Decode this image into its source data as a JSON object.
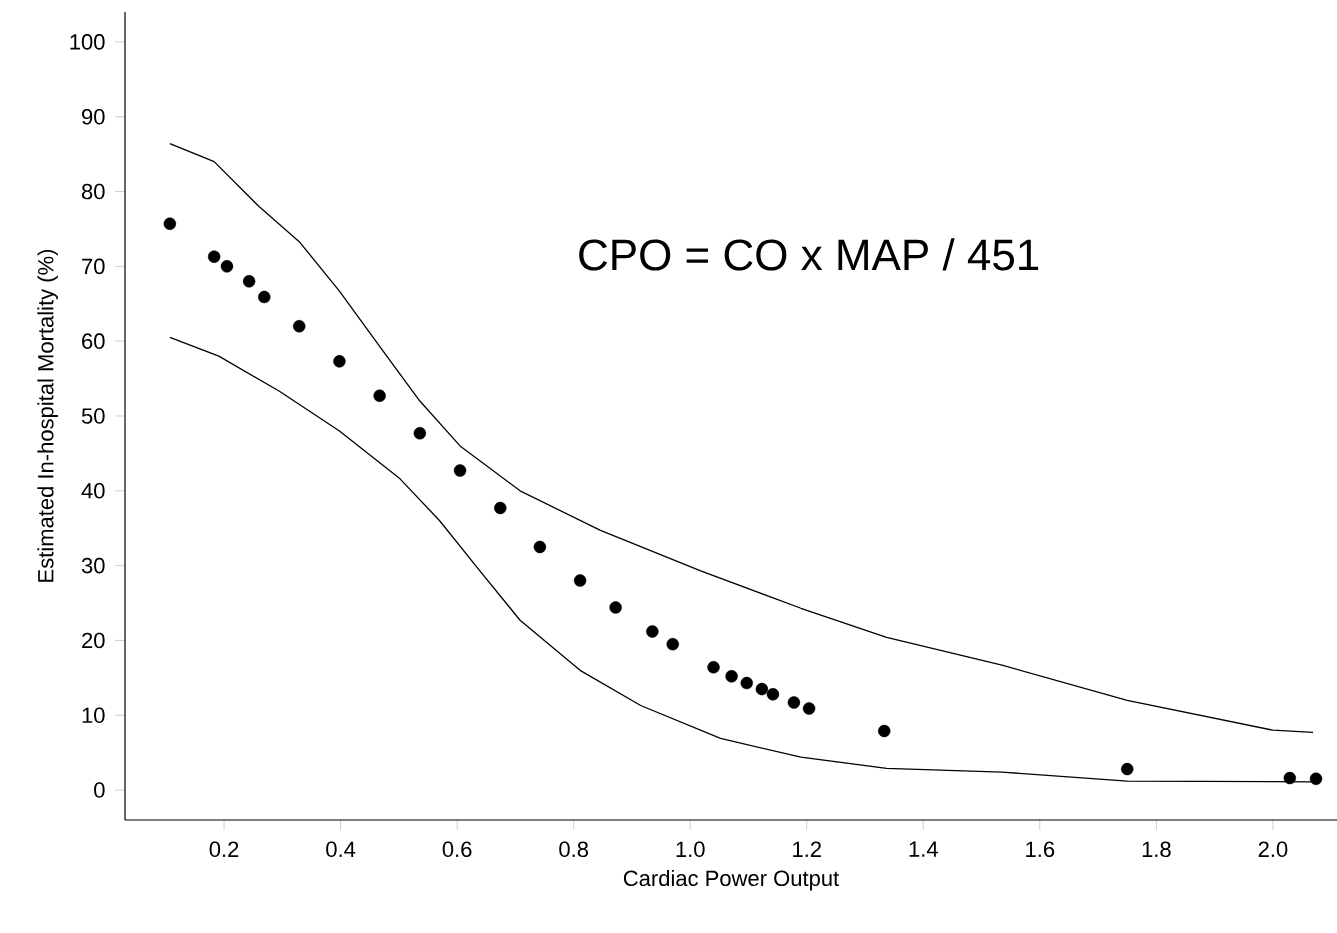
{
  "chart_data": {
    "type": "scatter",
    "xlabel": "Cardiac Power Output",
    "ylabel": "Estimated In-hospital Mortality (%)",
    "xlim": [
      0.03,
      2.11
    ],
    "ylim": [
      -4,
      104
    ],
    "xticks": [
      {
        "value": 0.2,
        "label": "0.2"
      },
      {
        "value": 0.4,
        "label": "0.4"
      },
      {
        "value": 0.6,
        "label": "0.6"
      },
      {
        "value": 0.8,
        "label": "0.8"
      },
      {
        "value": 1.0,
        "label": "1.0"
      },
      {
        "value": 1.2,
        "label": "1.2"
      },
      {
        "value": 1.4,
        "label": "1.4"
      },
      {
        "value": 1.6,
        "label": "1.6"
      },
      {
        "value": 1.8,
        "label": "1.8"
      },
      {
        "value": 2.0,
        "label": "2.0"
      }
    ],
    "yticks": [
      0,
      10,
      20,
      30,
      40,
      50,
      60,
      70,
      80,
      90,
      100
    ],
    "annotations": [
      "CPO = CO x MAP / 451"
    ],
    "series": [
      {
        "marker": "circle",
        "color": "#000000",
        "x": [
          0.107,
          0.183,
          0.205,
          0.243,
          0.269,
          0.329,
          0.398,
          0.467,
          0.536,
          0.605,
          0.674,
          0.742,
          0.811,
          0.872,
          0.935,
          0.97,
          1.04,
          1.071,
          1.097,
          1.123,
          1.142,
          1.178,
          1.204,
          1.333,
          1.75,
          2.029,
          2.074
        ],
        "values": [
          75.7,
          71.3,
          70,
          68,
          65.9,
          62,
          57.3,
          52.7,
          47.7,
          42.7,
          37.7,
          32.5,
          28,
          24.4,
          21.2,
          19.5,
          16.4,
          15.2,
          14.3,
          13.5,
          12.8,
          11.7,
          10.9,
          7.9,
          2.8,
          1.6,
          1.5
        ]
      },
      {
        "type": "line",
        "marker": "none",
        "line_style": "solid",
        "color": "#000000",
        "x": [
          0.107,
          0.183,
          0.26,
          0.329,
          0.398,
          0.467,
          0.536,
          0.605,
          0.708,
          0.846,
          1.018,
          1.19,
          1.337,
          1.535,
          1.75,
          2.0,
          2.069
        ],
        "values": [
          86.4,
          84,
          78,
          73.3,
          66.7,
          59.3,
          52,
          46,
          40,
          34.7,
          29.3,
          24.3,
          20.4,
          16.7,
          12,
          8,
          7.7
        ]
      },
      {
        "type": "line",
        "marker": "none",
        "line_style": "solid",
        "color": "#000000",
        "x": [
          0.107,
          0.191,
          0.295,
          0.398,
          0.502,
          0.57,
          0.639,
          0.708,
          0.811,
          0.915,
          1.052,
          1.19,
          1.337,
          1.535,
          1.75,
          2.069
        ],
        "values": [
          60.5,
          58,
          53.3,
          48,
          41.6,
          36,
          29.3,
          22.7,
          16,
          11.3,
          6.9,
          4.4,
          2.9,
          2.4,
          1.2,
          1.1
        ]
      }
    ]
  }
}
